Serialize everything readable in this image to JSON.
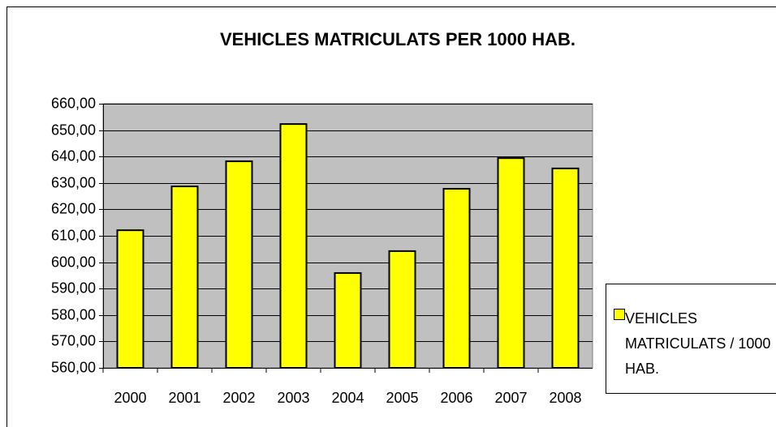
{
  "chart_data": {
    "type": "bar",
    "title": "VEHICLES MATRICULATS PER 1000 HAB.",
    "categories": [
      "2000",
      "2001",
      "2002",
      "2003",
      "2004",
      "2005",
      "2006",
      "2007",
      "2008"
    ],
    "series": [
      {
        "name": "VEHICLES MATRICULATS / 1000 HAB.",
        "color": "#ffff00",
        "values": [
          612.1,
          628.7,
          638.2,
          652.3,
          595.9,
          604.2,
          627.8,
          639.4,
          635.5
        ]
      }
    ],
    "ylim": [
      560,
      660
    ],
    "yticks": [
      {
        "value": 560,
        "label": "560,00"
      },
      {
        "value": 570,
        "label": "570,00"
      },
      {
        "value": 580,
        "label": "580,00"
      },
      {
        "value": 590,
        "label": "590,00"
      },
      {
        "value": 600,
        "label": "600,00"
      },
      {
        "value": 610,
        "label": "610,00"
      },
      {
        "value": 620,
        "label": "620,00"
      },
      {
        "value": 630,
        "label": "630,00"
      },
      {
        "value": 640,
        "label": "640,00"
      },
      {
        "value": 650,
        "label": "650,00"
      },
      {
        "value": 660,
        "label": "660,00"
      }
    ],
    "grid": true,
    "legend": "right"
  }
}
